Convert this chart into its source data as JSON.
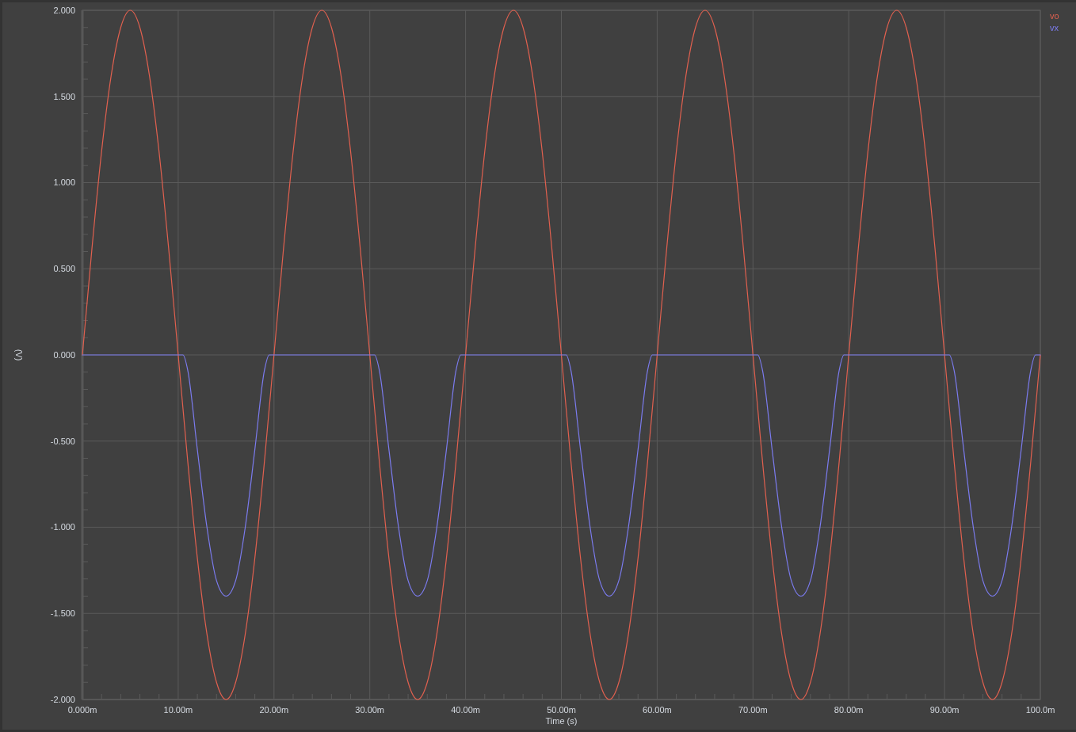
{
  "chart_data": {
    "type": "line",
    "xlabel": "Time (s)",
    "ylabel": "(V)",
    "xlim": [
      0,
      100
    ],
    "xticks": [
      {
        "value": 0,
        "label": "0.000m"
      },
      {
        "value": 2,
        "label": null
      },
      {
        "value": 4,
        "label": null
      },
      {
        "value": 6,
        "label": null
      },
      {
        "value": 8,
        "label": null
      },
      {
        "value": 10,
        "label": "10.00m"
      },
      {
        "value": 12,
        "label": null
      },
      {
        "value": 14,
        "label": null
      },
      {
        "value": 16,
        "label": null
      },
      {
        "value": 18,
        "label": null
      },
      {
        "value": 20,
        "label": "20.00m"
      },
      {
        "value": 22,
        "label": null
      },
      {
        "value": 24,
        "label": null
      },
      {
        "value": 26,
        "label": null
      },
      {
        "value": 28,
        "label": null
      },
      {
        "value": 30,
        "label": "30.00m"
      },
      {
        "value": 32,
        "label": null
      },
      {
        "value": 34,
        "label": null
      },
      {
        "value": 36,
        "label": null
      },
      {
        "value": 38,
        "label": null
      },
      {
        "value": 40,
        "label": "40.00m"
      },
      {
        "value": 42,
        "label": null
      },
      {
        "value": 44,
        "label": null
      },
      {
        "value": 46,
        "label": null
      },
      {
        "value": 48,
        "label": null
      },
      {
        "value": 50,
        "label": "50.00m"
      },
      {
        "value": 52,
        "label": null
      },
      {
        "value": 54,
        "label": null
      },
      {
        "value": 56,
        "label": null
      },
      {
        "value": 58,
        "label": null
      },
      {
        "value": 60,
        "label": "60.00m"
      },
      {
        "value": 62,
        "label": null
      },
      {
        "value": 64,
        "label": null
      },
      {
        "value": 66,
        "label": null
      },
      {
        "value": 68,
        "label": null
      },
      {
        "value": 70,
        "label": "70.00m"
      },
      {
        "value": 72,
        "label": null
      },
      {
        "value": 74,
        "label": null
      },
      {
        "value": 76,
        "label": null
      },
      {
        "value": 78,
        "label": null
      },
      {
        "value": 80,
        "label": "80.00m"
      },
      {
        "value": 82,
        "label": null
      },
      {
        "value": 84,
        "label": null
      },
      {
        "value": 86,
        "label": null
      },
      {
        "value": 88,
        "label": null
      },
      {
        "value": 90,
        "label": "90.00m"
      },
      {
        "value": 92,
        "label": null
      },
      {
        "value": 94,
        "label": null
      },
      {
        "value": 96,
        "label": null
      },
      {
        "value": 98,
        "label": null
      },
      {
        "value": 100,
        "label": "100.0m"
      }
    ],
    "ylim": [
      -2,
      2
    ],
    "yticks": [
      {
        "value": -2,
        "label": "-2.000"
      },
      {
        "value": -1.9,
        "label": null
      },
      {
        "value": -1.8,
        "label": null
      },
      {
        "value": -1.7,
        "label": null
      },
      {
        "value": -1.6,
        "label": null
      },
      {
        "value": -1.5,
        "label": "-1.500"
      },
      {
        "value": -1.4,
        "label": null
      },
      {
        "value": -1.3,
        "label": null
      },
      {
        "value": -1.2,
        "label": null
      },
      {
        "value": -1.1,
        "label": null
      },
      {
        "value": -1,
        "label": "-1.000"
      },
      {
        "value": -0.9,
        "label": null
      },
      {
        "value": -0.8,
        "label": null
      },
      {
        "value": -0.7,
        "label": null
      },
      {
        "value": -0.6,
        "label": null
      },
      {
        "value": -0.5,
        "label": "-0.500"
      },
      {
        "value": -0.4,
        "label": null
      },
      {
        "value": -0.3,
        "label": null
      },
      {
        "value": -0.2,
        "label": null
      },
      {
        "value": -0.1,
        "label": null
      },
      {
        "value": 0,
        "label": "0.000"
      },
      {
        "value": 0.1,
        "label": null
      },
      {
        "value": 0.2,
        "label": null
      },
      {
        "value": 0.3,
        "label": null
      },
      {
        "value": 0.4,
        "label": null
      },
      {
        "value": 0.5,
        "label": "0.500"
      },
      {
        "value": 0.6,
        "label": null
      },
      {
        "value": 0.7,
        "label": null
      },
      {
        "value": 0.8,
        "label": null
      },
      {
        "value": 0.9,
        "label": null
      },
      {
        "value": 1,
        "label": "1.000"
      },
      {
        "value": 1.1,
        "label": null
      },
      {
        "value": 1.2,
        "label": null
      },
      {
        "value": 1.3,
        "label": null
      },
      {
        "value": 1.4,
        "label": null
      },
      {
        "value": 1.5,
        "label": "1.500"
      },
      {
        "value": 1.6,
        "label": null
      },
      {
        "value": 1.7,
        "label": null
      },
      {
        "value": 1.8,
        "label": null
      },
      {
        "value": 1.9,
        "label": null
      },
      {
        "value": 2,
        "label": "2.000"
      }
    ],
    "grid": true,
    "legend": "top right",
    "series": [
      {
        "name": "vo",
        "color": "#e0604f",
        "x": [
          0,
          1,
          2,
          3,
          4,
          5,
          6,
          7,
          8,
          9,
          10,
          11,
          12,
          13,
          14,
          15,
          16,
          17,
          18,
          19,
          20,
          21,
          22,
          23,
          24,
          25,
          26,
          27,
          28,
          29,
          30,
          31,
          32,
          33,
          34,
          35,
          36,
          37,
          38,
          39,
          40,
          41,
          42,
          43,
          44,
          45,
          46,
          47,
          48,
          49,
          50,
          51,
          52,
          53,
          54,
          55,
          56,
          57,
          58,
          59,
          60,
          61,
          62,
          63,
          64,
          65,
          66,
          67,
          68,
          69,
          70,
          71,
          72,
          73,
          74,
          75,
          76,
          77,
          78,
          79,
          80,
          81,
          82,
          83,
          84,
          85,
          86,
          87,
          88,
          89,
          90,
          91,
          92,
          93,
          94,
          95,
          96,
          97,
          98,
          99,
          100
        ],
        "values": [
          0,
          0.62,
          1.18,
          1.62,
          1.9,
          2,
          1.9,
          1.62,
          1.18,
          0.62,
          0,
          -0.62,
          -1.18,
          -1.62,
          -1.9,
          -2,
          -1.9,
          -1.62,
          -1.18,
          -0.62,
          0,
          0.62,
          1.18,
          1.62,
          1.9,
          2,
          1.9,
          1.62,
          1.18,
          0.62,
          0,
          -0.62,
          -1.18,
          -1.62,
          -1.9,
          -2,
          -1.9,
          -1.62,
          -1.18,
          -0.62,
          0,
          0.62,
          1.18,
          1.62,
          1.9,
          2,
          1.9,
          1.62,
          1.18,
          0.62,
          0,
          -0.62,
          -1.18,
          -1.62,
          -1.9,
          -2,
          -1.9,
          -1.62,
          -1.18,
          -0.62,
          0,
          0.62,
          1.18,
          1.62,
          1.9,
          2,
          1.9,
          1.62,
          1.18,
          0.62,
          0,
          -0.62,
          -1.18,
          -1.62,
          -1.9,
          -2,
          -1.9,
          -1.62,
          -1.18,
          -0.62,
          0,
          0.62,
          1.18,
          1.62,
          1.9,
          2,
          1.9,
          1.62,
          1.18,
          0.62,
          0,
          -0.62,
          -1.18,
          -1.62,
          -1.9,
          -2,
          -1.9,
          -1.62,
          -1.18,
          -0.62,
          0
        ]
      },
      {
        "name": "vx",
        "color": "#7b7bee",
        "x": [
          0,
          10.5,
          11,
          12,
          13,
          14,
          15,
          16,
          17,
          18,
          19,
          19.5,
          20,
          30.5,
          31,
          32,
          33,
          34,
          35,
          36,
          37,
          38,
          39,
          39.5,
          40,
          50.5,
          51,
          52,
          53,
          54,
          55,
          56,
          57,
          58,
          59,
          59.5,
          60,
          70.5,
          71,
          72,
          73,
          74,
          75,
          76,
          77,
          78,
          79,
          79.5,
          80,
          90.5,
          91,
          92,
          93,
          94,
          95,
          96,
          97,
          98,
          99,
          99.5,
          100
        ],
        "values": [
          0,
          0,
          -0.09,
          -0.55,
          -1,
          -1.31,
          -1.4,
          -1.31,
          -1,
          -0.55,
          -0.09,
          0,
          0,
          0,
          -0.09,
          -0.55,
          -1,
          -1.31,
          -1.4,
          -1.31,
          -1,
          -0.55,
          -0.09,
          0,
          0,
          0,
          -0.09,
          -0.55,
          -1,
          -1.31,
          -1.4,
          -1.31,
          -1,
          -0.55,
          -0.09,
          0,
          0,
          0,
          -0.09,
          -0.55,
          -1,
          -1.31,
          -1.4,
          -1.31,
          -1,
          -0.55,
          -0.09,
          0,
          0,
          0,
          -0.09,
          -0.55,
          -1,
          -1.31,
          -1.4,
          -1.31,
          -1,
          -0.55,
          -0.09,
          0,
          0
        ]
      }
    ]
  }
}
